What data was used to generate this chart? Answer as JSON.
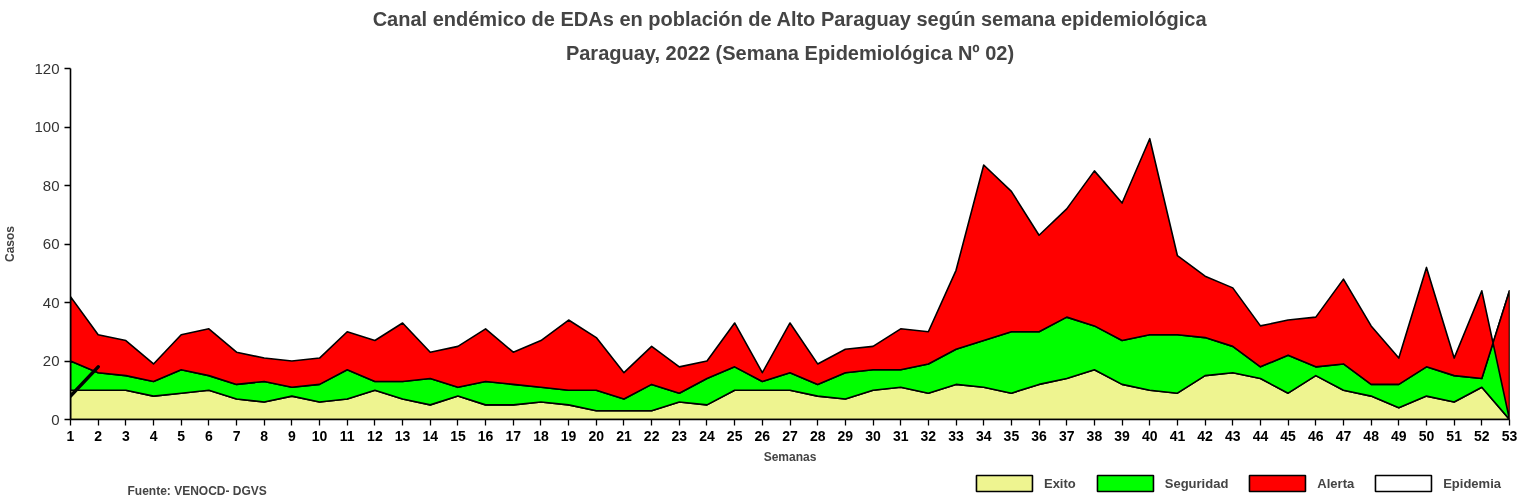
{
  "chart_data": {
    "type": "area",
    "title": "Canal endémico de EDAs en población de Alto Paraguay según semana epidemiológica",
    "subtitle": "Paraguay, 2022 (Semana Epidemiológica Nº 02)",
    "xlabel": "Semanas",
    "ylabel": "Casos",
    "annotations": [
      "Fuente: VENOCD- DGVS"
    ],
    "x": [
      1,
      2,
      3,
      4,
      5,
      6,
      7,
      8,
      9,
      10,
      11,
      12,
      13,
      14,
      15,
      16,
      17,
      18,
      19,
      20,
      21,
      22,
      23,
      24,
      25,
      26,
      27,
      28,
      29,
      30,
      31,
      32,
      33,
      34,
      35,
      36,
      37,
      38,
      39,
      40,
      41,
      42,
      43,
      44,
      45,
      46,
      47,
      48,
      49,
      50,
      51,
      52,
      53
    ],
    "xlim": [
      1,
      53
    ],
    "xticks": [
      1,
      2,
      3,
      4,
      5,
      6,
      7,
      8,
      9,
      10,
      11,
      12,
      13,
      14,
      15,
      16,
      17,
      18,
      19,
      20,
      21,
      22,
      23,
      24,
      25,
      26,
      27,
      28,
      29,
      30,
      31,
      32,
      33,
      34,
      35,
      36,
      37,
      38,
      39,
      40,
      41,
      42,
      43,
      44,
      45,
      46,
      47,
      48,
      49,
      50,
      51,
      52,
      53
    ],
    "ylim": [
      0,
      120
    ],
    "yticks": [
      0,
      20,
      40,
      60,
      80,
      100,
      120
    ],
    "grid": false,
    "legend": "bottom right",
    "series": [
      {
        "name": "Exito",
        "color": "#eef490",
        "values": [
          10,
          10,
          10,
          8,
          9,
          10,
          7,
          6,
          8,
          6,
          7,
          10,
          7,
          5,
          8,
          5,
          5,
          6,
          5,
          3,
          3,
          3,
          6,
          5,
          10,
          10,
          10,
          8,
          7,
          10,
          11,
          9,
          12,
          11,
          9,
          12,
          14,
          17,
          12,
          10,
          9,
          15,
          16,
          14,
          9,
          15,
          10,
          8,
          4,
          8,
          6,
          11,
          0
        ]
      },
      {
        "name": "Seguridad",
        "color": "#00ff00",
        "values": [
          20,
          16,
          15,
          13,
          17,
          15,
          12,
          13,
          11,
          12,
          17,
          13,
          13,
          14,
          11,
          13,
          12,
          11,
          10,
          10,
          7,
          12,
          9,
          14,
          18,
          13,
          16,
          12,
          16,
          17,
          17,
          19,
          24,
          27,
          30,
          30,
          35,
          32,
          27,
          29,
          29,
          28,
          25,
          18,
          22,
          18,
          19,
          12,
          12,
          18,
          15,
          14,
          44
        ]
      },
      {
        "name": "Alerta",
        "color": "#ff0000",
        "values": [
          42,
          29,
          27,
          19,
          29,
          31,
          23,
          21,
          20,
          21,
          30,
          27,
          33,
          23,
          25,
          31,
          23,
          27,
          34,
          28,
          16,
          25,
          18,
          20,
          33,
          16,
          33,
          19,
          24,
          25,
          31,
          30,
          51,
          87,
          78,
          63,
          72,
          85,
          74,
          96,
          56,
          49,
          45,
          32,
          34,
          35,
          48,
          32,
          21,
          52,
          21,
          44,
          0
        ]
      },
      {
        "name": "Epidemia",
        "color": "#ffffff",
        "values": [
          null,
          null,
          null,
          null,
          null,
          null,
          null,
          null,
          null,
          null,
          null,
          null,
          null,
          null,
          null,
          null,
          null,
          null,
          null,
          null,
          null,
          null,
          null,
          null,
          null,
          null,
          null,
          null,
          null,
          null,
          null,
          null,
          null,
          null,
          null,
          null,
          null,
          null,
          null,
          null,
          null,
          null,
          null,
          null,
          null,
          null,
          null,
          null,
          null,
          null,
          null,
          null,
          null
        ]
      },
      {
        "type": "line",
        "color": "#000000",
        "x": [
          1,
          2
        ],
        "values": [
          8,
          18
        ]
      }
    ]
  }
}
